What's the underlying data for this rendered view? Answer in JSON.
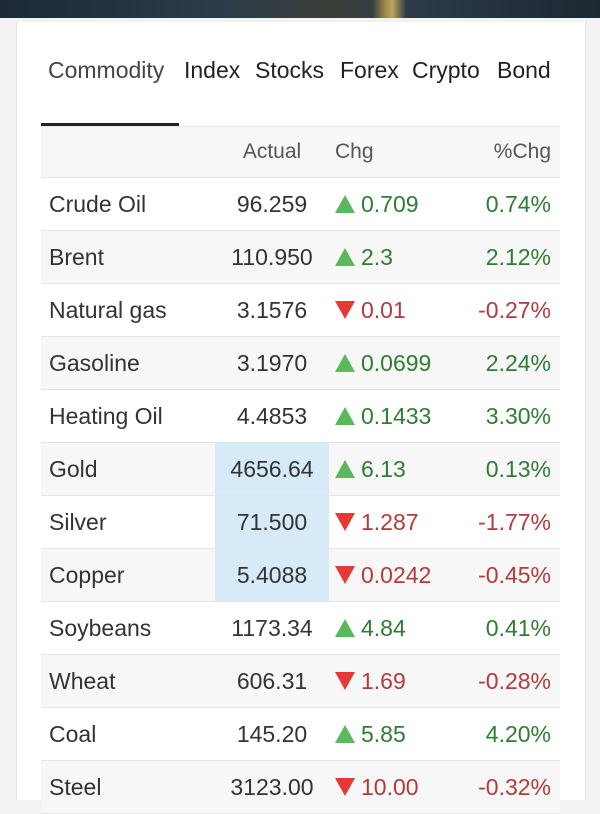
{
  "tabs": [
    "Commodity",
    "Index",
    "Stocks",
    "Forex",
    "Crypto",
    "Bond"
  ],
  "active_tab": "Commodity",
  "header": {
    "name": "",
    "actual": "Actual",
    "chg": "Chg",
    "pct": "%Chg"
  },
  "colors": {
    "up": "#5cb85c",
    "down": "#e53935",
    "highlight": "#d6eaf8"
  },
  "rows": [
    {
      "name": "Crude Oil",
      "actual": "96.259",
      "dir": "up",
      "chg": "0.709",
      "pct": "0.74%"
    },
    {
      "name": "Brent",
      "actual": "110.950",
      "dir": "up",
      "chg": "2.3",
      "pct": "2.12%"
    },
    {
      "name": "Natural gas",
      "actual": "3.1576",
      "dir": "down",
      "chg": "0.01",
      "pct": "-0.27%"
    },
    {
      "name": "Gasoline",
      "actual": "3.1970",
      "dir": "up",
      "chg": "0.0699",
      "pct": "2.24%"
    },
    {
      "name": "Heating Oil",
      "actual": "4.4853",
      "dir": "up",
      "chg": "0.1433",
      "pct": "3.30%"
    },
    {
      "name": "Gold",
      "actual": "4656.64",
      "dir": "up",
      "chg": "6.13",
      "pct": "0.13%",
      "highlight": true
    },
    {
      "name": "Silver",
      "actual": "71.500",
      "dir": "down",
      "chg": "1.287",
      "pct": "-1.77%",
      "highlight": true
    },
    {
      "name": "Copper",
      "actual": "5.4088",
      "dir": "down",
      "chg": "0.0242",
      "pct": "-0.45%",
      "highlight": true
    },
    {
      "name": "Soybeans",
      "actual": "1173.34",
      "dir": "up",
      "chg": "4.84",
      "pct": "0.41%"
    },
    {
      "name": "Wheat",
      "actual": "606.31",
      "dir": "down",
      "chg": "1.69",
      "pct": "-0.28%"
    },
    {
      "name": "Coal",
      "actual": "145.20",
      "dir": "up",
      "chg": "5.85",
      "pct": "4.20%"
    },
    {
      "name": "Steel",
      "actual": "3123.00",
      "dir": "down",
      "chg": "10.00",
      "pct": "-0.32%"
    }
  ]
}
